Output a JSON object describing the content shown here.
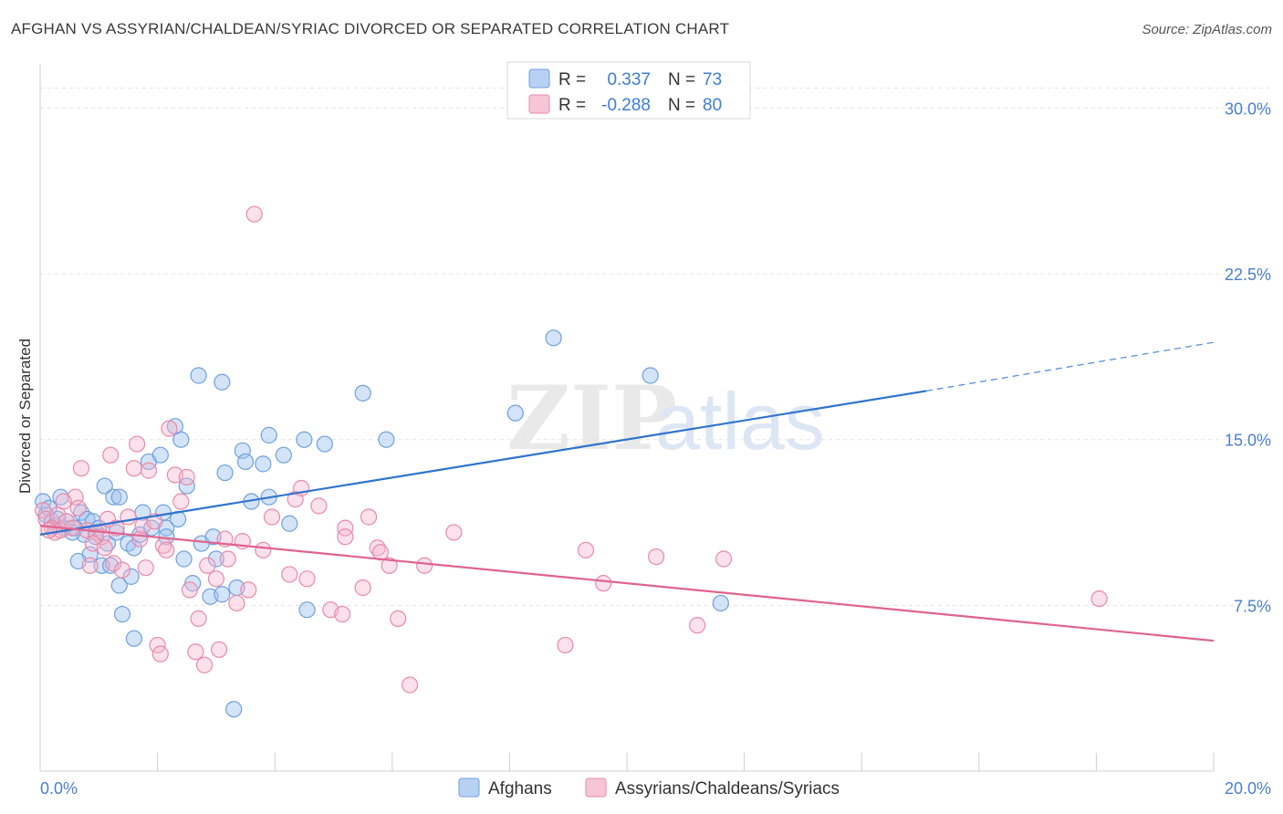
{
  "header": {
    "title": "AFGHAN VS ASSYRIAN/CHALDEAN/SYRIAC DIVORCED OR SEPARATED CORRELATION CHART",
    "source": "Source: ZipAtlas.com"
  },
  "watermark": {
    "zip": "ZIP",
    "atlas": "atlas"
  },
  "legend": {
    "r_label": "R =",
    "n_label": "N =",
    "rows": [
      {
        "r": "0.337",
        "n": "73",
        "color": "#6fa0e0",
        "fill": "#b8d0f2"
      },
      {
        "r": "-0.288",
        "n": "80",
        "color": "#e88aa9",
        "fill": "#f7c6d6"
      }
    ]
  },
  "colors": {
    "blue": "#3b7dd8",
    "pink": "#e26a96",
    "tick_text": "#4a7fcf"
  },
  "chart_data": {
    "type": "scatter",
    "title": "AFGHAN VS ASSYRIAN/CHALDEAN/SYRIAC DIVORCED OR SEPARATED CORRELATION CHART",
    "ylabel": "Divorced or Separated",
    "xlabel": "",
    "xlim": [
      0,
      20
    ],
    "ylim": [
      0,
      32
    ],
    "x_tick_labels": [
      "0.0%",
      "20.0%"
    ],
    "y_ticks": [
      7.5,
      15.0,
      22.5,
      30.0
    ],
    "y_tick_labels": [
      "7.5%",
      "15.0%",
      "22.5%",
      "30.0%"
    ],
    "grid": "horizontal dashed",
    "legend_position": "top-center",
    "series": [
      {
        "name": "Afghans",
        "color": "#6fa0e0",
        "trend": {
          "x": [
            0,
            15.1
          ],
          "y": [
            10.7,
            17.2
          ],
          "dashed_to": [
            20,
            19.4
          ]
        },
        "points": [
          [
            0.05,
            12.2
          ],
          [
            0.1,
            11.6
          ],
          [
            0.15,
            11.9
          ],
          [
            0.2,
            11.3
          ],
          [
            0.25,
            11.1
          ],
          [
            0.3,
            11.4
          ],
          [
            0.35,
            12.4
          ],
          [
            0.4,
            11.0
          ],
          [
            0.45,
            11.3
          ],
          [
            0.6,
            11.0
          ],
          [
            0.7,
            11.7
          ],
          [
            0.75,
            10.7
          ],
          [
            0.8,
            11.4
          ],
          [
            0.9,
            11.3
          ],
          [
            1.0,
            11.0
          ],
          [
            1.1,
            12.9
          ],
          [
            1.15,
            10.3
          ],
          [
            1.25,
            12.4
          ],
          [
            1.35,
            12.4
          ],
          [
            1.05,
            9.3
          ],
          [
            1.3,
            10.8
          ],
          [
            1.35,
            8.4
          ],
          [
            1.5,
            10.3
          ],
          [
            1.55,
            8.8
          ],
          [
            1.6,
            10.1
          ],
          [
            1.7,
            10.7
          ],
          [
            1.75,
            11.7
          ],
          [
            1.85,
            14.0
          ],
          [
            1.9,
            11.0
          ],
          [
            2.05,
            14.3
          ],
          [
            2.1,
            11.7
          ],
          [
            2.15,
            11.0
          ],
          [
            2.3,
            15.6
          ],
          [
            2.35,
            11.4
          ],
          [
            2.4,
            15.0
          ],
          [
            2.45,
            9.6
          ],
          [
            2.5,
            12.9
          ],
          [
            2.6,
            8.5
          ],
          [
            2.7,
            17.9
          ],
          [
            2.75,
            10.3
          ],
          [
            2.9,
            7.9
          ],
          [
            2.95,
            10.6
          ],
          [
            3.0,
            9.6
          ],
          [
            3.1,
            8.0
          ],
          [
            3.1,
            17.6
          ],
          [
            3.15,
            13.5
          ],
          [
            3.3,
            2.8
          ],
          [
            3.35,
            8.3
          ],
          [
            3.45,
            14.5
          ],
          [
            3.5,
            14.0
          ],
          [
            3.6,
            12.2
          ],
          [
            3.8,
            13.9
          ],
          [
            3.9,
            15.2
          ],
          [
            3.9,
            12.4
          ],
          [
            4.15,
            14.3
          ],
          [
            4.25,
            11.2
          ],
          [
            4.5,
            15.0
          ],
          [
            4.55,
            7.3
          ],
          [
            4.85,
            14.8
          ],
          [
            5.5,
            17.1
          ],
          [
            5.9,
            15.0
          ],
          [
            8.1,
            16.2
          ],
          [
            8.75,
            19.6
          ],
          [
            10.4,
            17.9
          ],
          [
            11.6,
            7.6
          ],
          [
            0.85,
            9.8
          ],
          [
            1.4,
            7.1
          ],
          [
            1.6,
            6.0
          ],
          [
            2.15,
            10.6
          ],
          [
            0.55,
            10.8
          ],
          [
            1.2,
            9.3
          ],
          [
            0.65,
            9.5
          ],
          [
            0.95,
            10.6
          ]
        ]
      },
      {
        "name": "Assyrians/Chaldeans/Syriacs",
        "color": "#e88aa9",
        "trend": {
          "x": [
            0,
            20
          ],
          "y": [
            11.1,
            5.9
          ]
        },
        "points": [
          [
            0.05,
            11.8
          ],
          [
            0.1,
            11.4
          ],
          [
            0.2,
            11.0
          ],
          [
            0.25,
            10.8
          ],
          [
            0.3,
            11.6
          ],
          [
            0.35,
            10.9
          ],
          [
            0.45,
            11.3
          ],
          [
            0.55,
            11.0
          ],
          [
            0.6,
            12.4
          ],
          [
            0.65,
            11.9
          ],
          [
            0.7,
            13.7
          ],
          [
            0.8,
            10.9
          ],
          [
            0.85,
            9.3
          ],
          [
            0.95,
            10.8
          ],
          [
            1.05,
            10.6
          ],
          [
            1.15,
            11.4
          ],
          [
            1.2,
            14.3
          ],
          [
            1.25,
            9.4
          ],
          [
            1.3,
            11.0
          ],
          [
            1.4,
            9.1
          ],
          [
            1.5,
            11.5
          ],
          [
            1.6,
            13.7
          ],
          [
            1.65,
            14.8
          ],
          [
            1.7,
            10.5
          ],
          [
            1.75,
            11.1
          ],
          [
            1.8,
            9.2
          ],
          [
            1.85,
            13.6
          ],
          [
            1.95,
            11.3
          ],
          [
            2.0,
            5.7
          ],
          [
            2.05,
            5.3
          ],
          [
            2.1,
            10.2
          ],
          [
            2.15,
            10.0
          ],
          [
            2.2,
            15.5
          ],
          [
            2.3,
            13.4
          ],
          [
            2.4,
            12.2
          ],
          [
            2.5,
            13.3
          ],
          [
            2.55,
            8.2
          ],
          [
            2.65,
            5.4
          ],
          [
            2.7,
            6.9
          ],
          [
            2.8,
            4.8
          ],
          [
            2.85,
            9.3
          ],
          [
            3.0,
            8.7
          ],
          [
            3.05,
            5.5
          ],
          [
            3.15,
            10.5
          ],
          [
            3.2,
            9.6
          ],
          [
            3.35,
            7.6
          ],
          [
            3.45,
            10.4
          ],
          [
            3.55,
            8.2
          ],
          [
            3.65,
            25.2
          ],
          [
            3.8,
            10.0
          ],
          [
            3.95,
            11.5
          ],
          [
            4.25,
            8.9
          ],
          [
            4.35,
            12.3
          ],
          [
            4.45,
            12.8
          ],
          [
            4.55,
            8.7
          ],
          [
            4.75,
            12.0
          ],
          [
            4.95,
            7.3
          ],
          [
            5.15,
            7.1
          ],
          [
            5.2,
            11.0
          ],
          [
            5.2,
            10.6
          ],
          [
            5.5,
            8.3
          ],
          [
            5.6,
            11.5
          ],
          [
            5.75,
            10.1
          ],
          [
            5.8,
            9.9
          ],
          [
            5.95,
            9.3
          ],
          [
            6.1,
            6.9
          ],
          [
            6.3,
            3.9
          ],
          [
            6.55,
            9.3
          ],
          [
            7.05,
            10.8
          ],
          [
            8.95,
            5.7
          ],
          [
            9.3,
            10.0
          ],
          [
            9.6,
            8.5
          ],
          [
            10.5,
            9.7
          ],
          [
            11.2,
            6.6
          ],
          [
            11.65,
            9.6
          ],
          [
            18.05,
            7.8
          ],
          [
            0.15,
            10.9
          ],
          [
            0.4,
            12.2
          ],
          [
            0.9,
            10.3
          ],
          [
            1.1,
            10.1
          ]
        ]
      }
    ]
  },
  "bottom_legend": {
    "items": [
      {
        "label": "Afghans",
        "fill": "#b8d0f2",
        "stroke": "#6fa0e0"
      },
      {
        "label": "Assyrians/Chaldeans/Syriacs",
        "fill": "#f7c6d6",
        "stroke": "#e88aa9"
      }
    ]
  }
}
